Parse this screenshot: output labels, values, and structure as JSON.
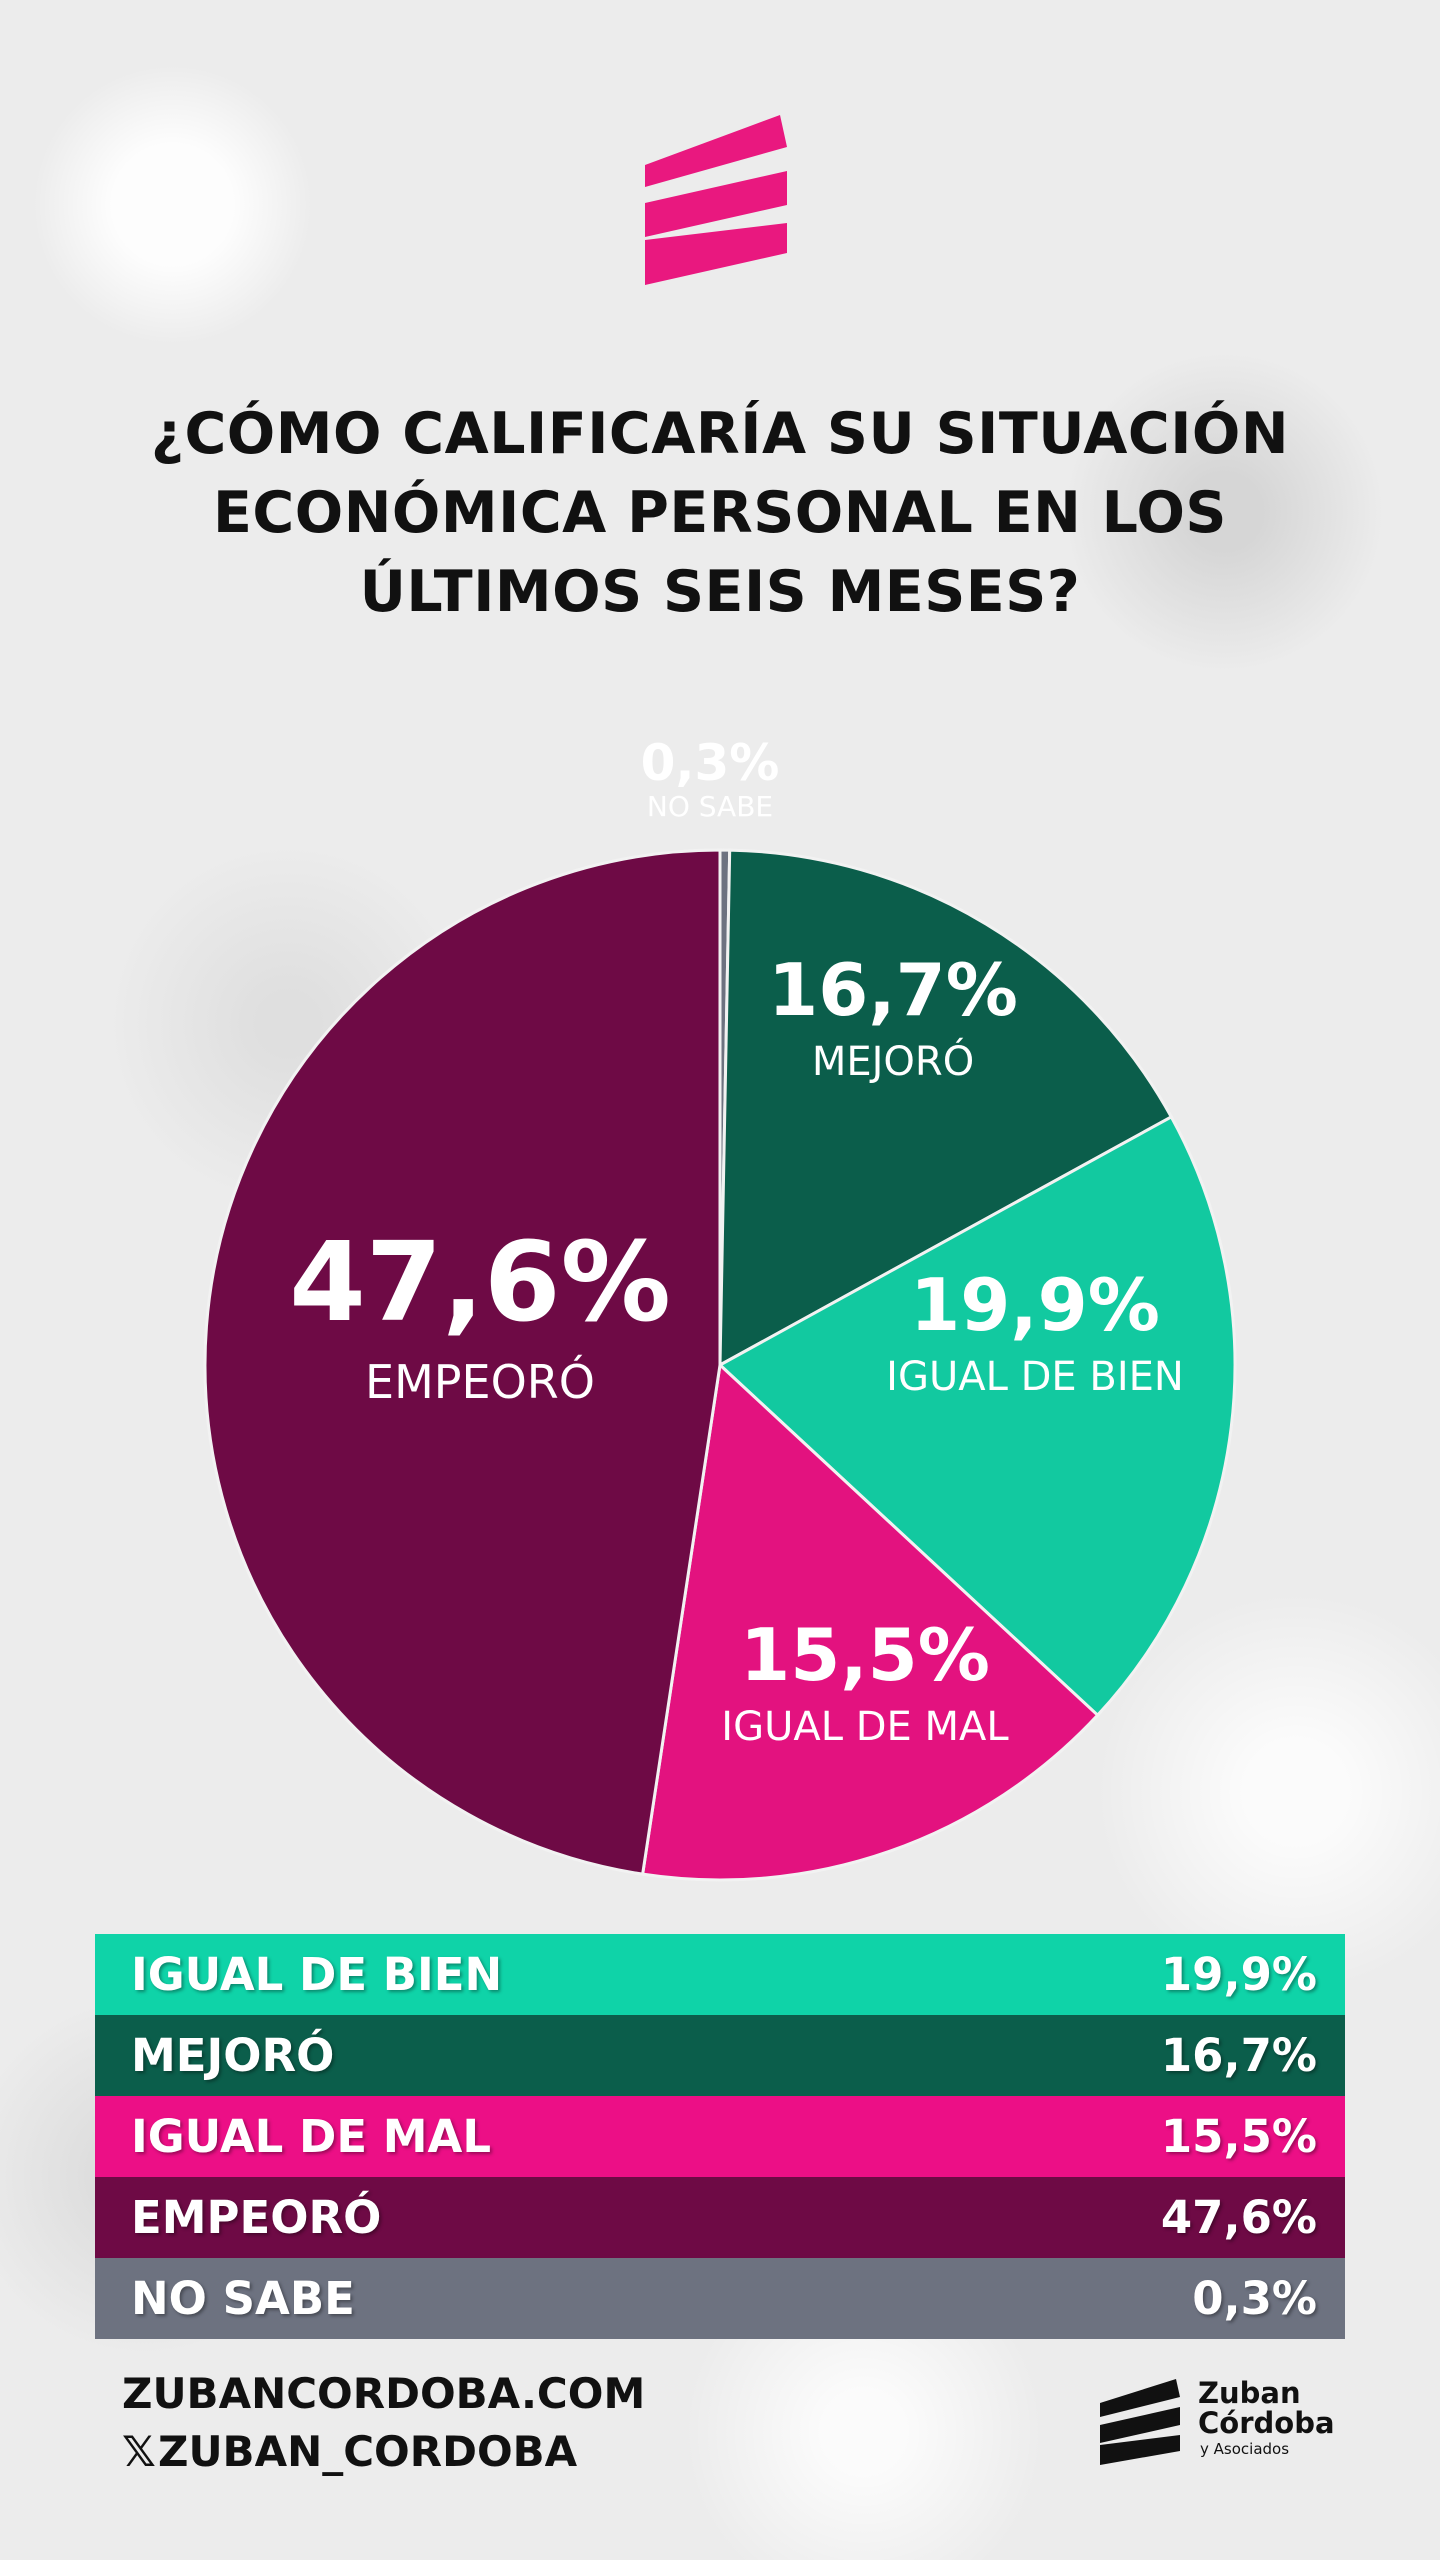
{
  "header": {
    "title_lines": [
      "¿CÓMO CALIFICARÍA SU SITUACIÓN",
      "ECONÓMICA PERSONAL EN LOS",
      "ÚLTIMOS SEIS MESES?"
    ]
  },
  "colors": {
    "accent_pink": "#e9187f",
    "mejoro": "#0b5e4b",
    "igual_bien": "#12c9a0",
    "igual_mal": "#e3127f",
    "empeoro": "#6e0a45",
    "no_sabe": "#6d7280"
  },
  "chart_data": {
    "type": "pie",
    "title": "¿CÓMO CALIFICARÍA SU SITUACIÓN ECONÓMICA PERSONAL EN LOS ÚLTIMOS SEIS MESES?",
    "slices": [
      {
        "label": "NO SABE",
        "value": 0.3,
        "value_label": "0,3%",
        "color": "#6d7280"
      },
      {
        "label": "MEJORÓ",
        "value": 16.7,
        "value_label": "16,7%",
        "color": "#0b5e4b"
      },
      {
        "label": "IGUAL DE BIEN",
        "value": 19.9,
        "value_label": "19,9%",
        "color": "#12c9a0"
      },
      {
        "label": "IGUAL DE MAL",
        "value": 15.5,
        "value_label": "15,5%",
        "color": "#e3127f"
      },
      {
        "label": "EMPEORÓ",
        "value": 47.6,
        "value_label": "47,6%",
        "color": "#6e0a45"
      }
    ]
  },
  "table": {
    "rows": [
      {
        "label": "IGUAL DE BIEN",
        "value": "19,9%",
        "color": "#0fd3a8"
      },
      {
        "label": "MEJORÓ",
        "value": "16,7%",
        "color": "#0b5e4b"
      },
      {
        "label": "IGUAL DE MAL",
        "value": "15,5%",
        "color": "#ec0f86"
      },
      {
        "label": "EMPEORÓ",
        "value": "47,6%",
        "color": "#6e0a45"
      },
      {
        "label": "NO SABE",
        "value": "0,3%",
        "color": "#6d7280"
      }
    ]
  },
  "footer": {
    "website": "ZUBANCORDOBA.COM",
    "x_glyph": "𝕏",
    "handle": "ZUBAN_CORDOBA",
    "brand_line1": "Zuban",
    "brand_line2": "Córdoba",
    "brand_line3": "y Asociados"
  }
}
